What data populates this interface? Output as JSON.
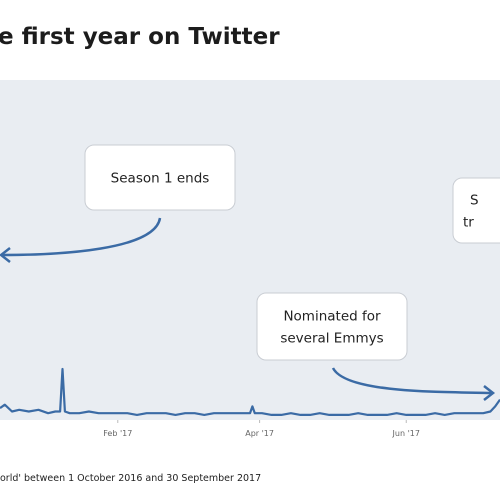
{
  "chart_data": {
    "type": "line",
    "title": "e first year on Twitter",
    "footnote": "orld' between 1 October 2016 and 30 September 2017",
    "x": [
      74,
      76,
      79,
      82,
      86,
      90,
      94,
      97,
      99,
      100,
      101,
      103,
      107,
      111,
      115,
      119,
      123,
      127,
      131,
      135,
      139,
      143,
      147,
      151,
      155,
      159,
      163,
      167,
      171,
      175,
      178,
      179,
      180,
      183,
      187,
      191,
      195,
      199,
      203,
      207,
      211,
      215,
      219,
      223,
      227,
      231,
      235,
      239,
      243,
      247,
      251,
      255,
      259,
      263,
      267,
      271,
      275,
      278,
      280,
      282
    ],
    "values": [
      3.5,
      4.5,
      2.5,
      3,
      2.5,
      3,
      2,
      2.5,
      2.5,
      15,
      2.5,
      2,
      2,
      2.5,
      2,
      2,
      2,
      2,
      1.5,
      2,
      2,
      2,
      1.5,
      2,
      2,
      1.5,
      2,
      2,
      2,
      2,
      2,
      4,
      2,
      2,
      1.5,
      1.5,
      2,
      1.5,
      1.5,
      2,
      1.5,
      1.5,
      1.5,
      2,
      1.5,
      1.5,
      1.5,
      2,
      1.5,
      1.5,
      1.5,
      2,
      1.5,
      2,
      2,
      2,
      2,
      2.5,
      4,
      6
    ],
    "color": "#3b6ba5",
    "xlim": [
      74,
      282
    ],
    "ylim": [
      0,
      100
    ],
    "xticks": [
      {
        "value": 123,
        "label": "Feb '17"
      },
      {
        "value": 182,
        "label": "Apr '17"
      },
      {
        "value": 243,
        "label": "Jun '17"
      }
    ],
    "annotations": [
      {
        "lines": [
          "Season 1 ends"
        ]
      },
      {
        "lines": [
          "Nominated for",
          "several Emmys"
        ]
      },
      {
        "lines": [
          "S",
          "tr"
        ]
      }
    ]
  }
}
